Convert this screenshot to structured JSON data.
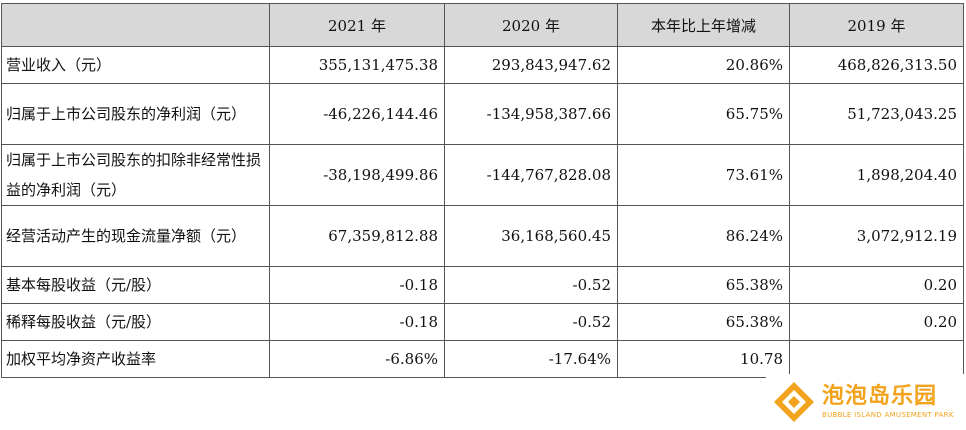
{
  "table": {
    "columns": [
      "",
      "2021 年",
      "2020 年",
      "本年比上年增减",
      "2019 年"
    ],
    "rows": [
      {
        "label": "营业收入（元）",
        "v2021": "355,131,475.38",
        "v2020": "293,843,947.62",
        "change": "20.86%",
        "v2019": "468,826,313.50"
      },
      {
        "label": "归属于上市公司股东的净利润（元）",
        "v2021": "-46,226,144.46",
        "v2020": "-134,958,387.66",
        "change": "65.75%",
        "v2019": "51,723,043.25"
      },
      {
        "label": "归属于上市公司股东的扣除非经常性损益的净利润（元）",
        "v2021": "-38,198,499.86",
        "v2020": "-144,767,828.08",
        "change": "73.61%",
        "v2019": "1,898,204.40"
      },
      {
        "label": "经营活动产生的现金流量净额（元）",
        "v2021": "67,359,812.88",
        "v2020": "36,168,560.45",
        "change": "86.24%",
        "v2019": "3,072,912.19"
      },
      {
        "label": "基本每股收益（元/股）",
        "v2021": "-0.18",
        "v2020": "-0.52",
        "change": "65.38%",
        "v2019": "0.20"
      },
      {
        "label": "稀释每股收益（元/股）",
        "v2021": "-0.18",
        "v2020": "-0.52",
        "change": "65.38%",
        "v2019": "0.20"
      },
      {
        "label": "加权平均净资产收益率",
        "v2021": "-6.86%",
        "v2020": "-17.64%",
        "change": "10.78",
        "v2019": ""
      }
    ]
  },
  "watermark": {
    "main": "泡泡岛乐园",
    "sub": "BUBBLE ISLAND AMUSEMENT PARK",
    "color": "#f2a21b"
  }
}
